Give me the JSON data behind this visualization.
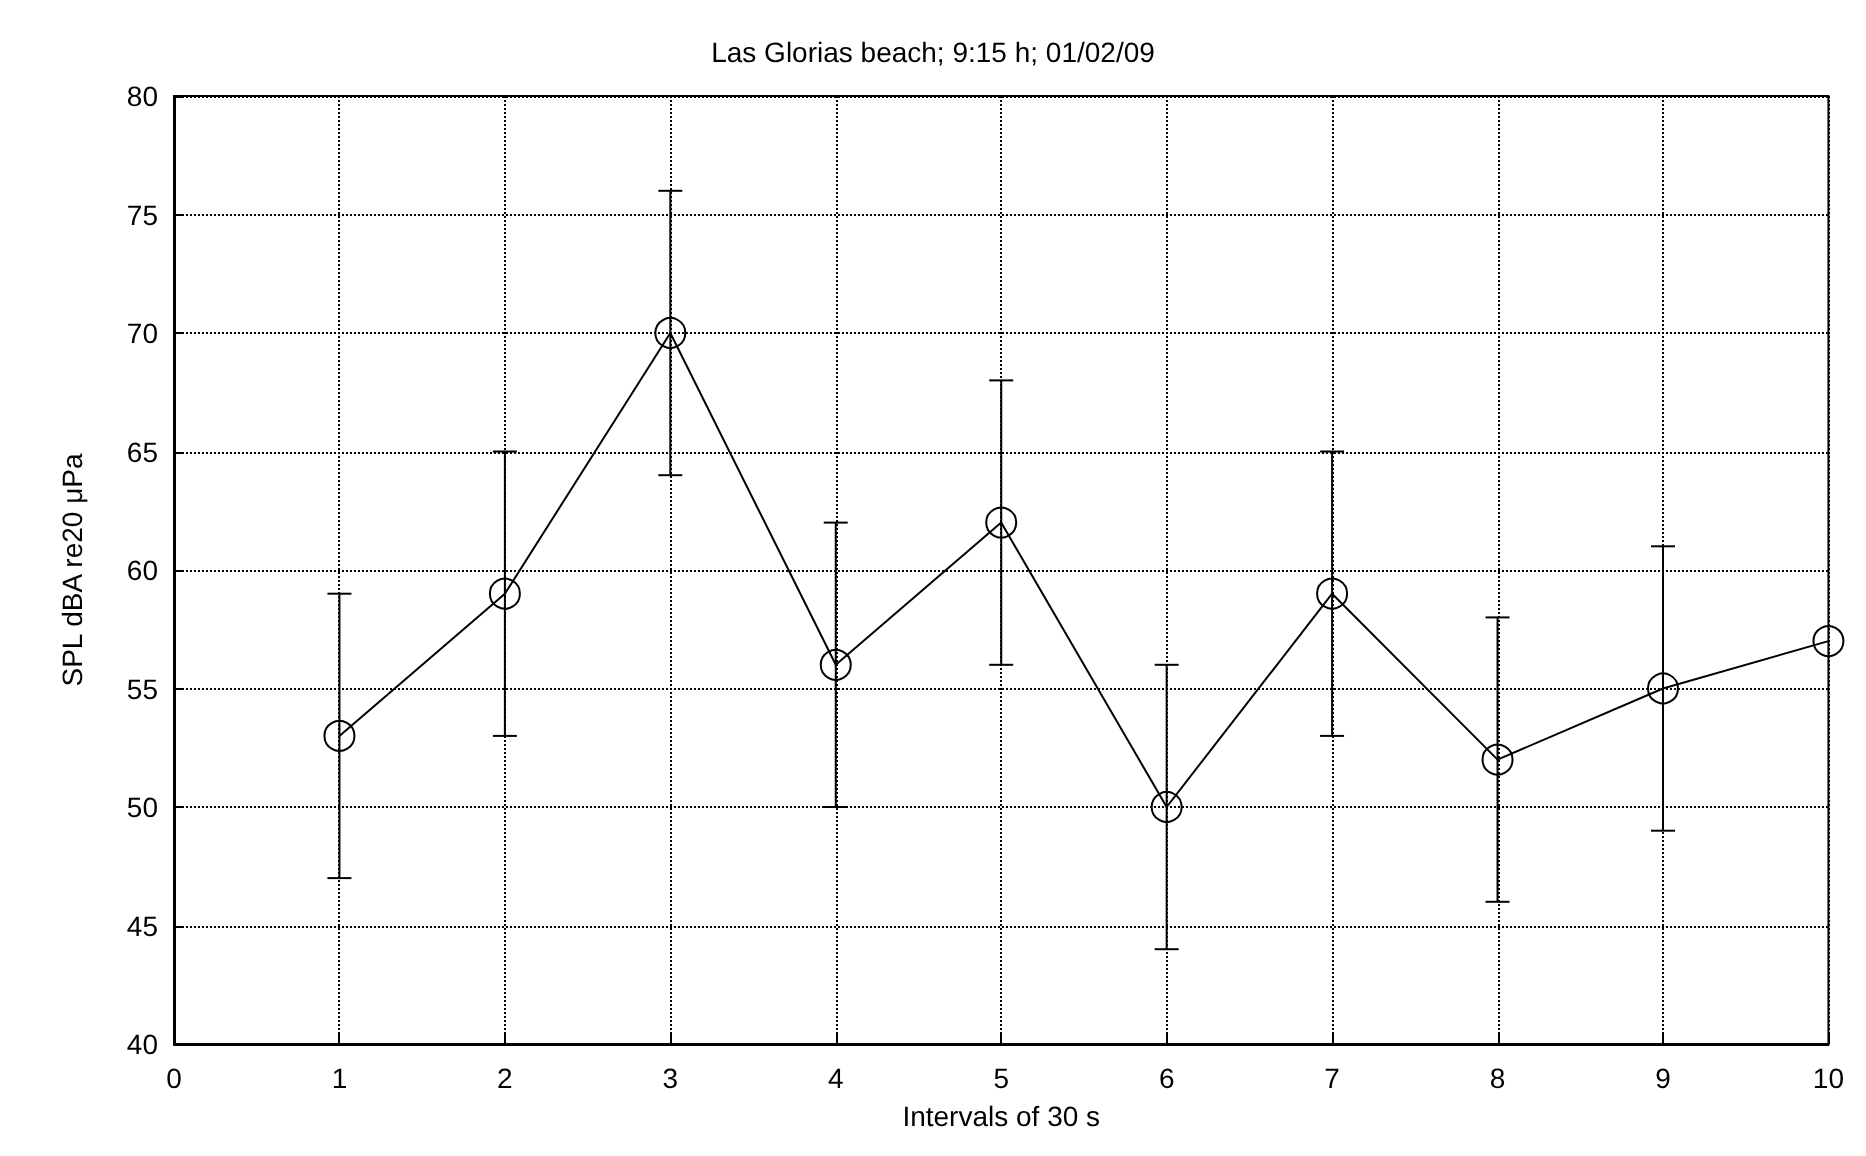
{
  "chart_data": {
    "type": "line",
    "title": "Las Glorias beach; 9:15 h; 01/02/09",
    "xlabel": "Intervals of 30 s",
    "ylabel": "SPL dBA re20 μPa",
    "x": [
      1,
      2,
      3,
      4,
      5,
      6,
      7,
      8,
      9,
      10
    ],
    "series": [
      {
        "color": "#000000",
        "values": [
          53,
          59,
          70,
          56,
          62,
          50,
          59,
          52,
          55,
          57
        ],
        "errors": [
          6,
          6,
          6,
          6,
          6,
          6,
          6,
          6,
          6,
          null
        ]
      }
    ],
    "xlim": [
      0,
      10
    ],
    "xticks": [
      0,
      1,
      2,
      3,
      4,
      5,
      6,
      7,
      8,
      9,
      10
    ],
    "ylim": [
      40,
      80
    ],
    "yticks": [
      40,
      45,
      50,
      55,
      60,
      65,
      70,
      75,
      80
    ],
    "grid": true,
    "marker": "circle",
    "line_style": "solid"
  }
}
